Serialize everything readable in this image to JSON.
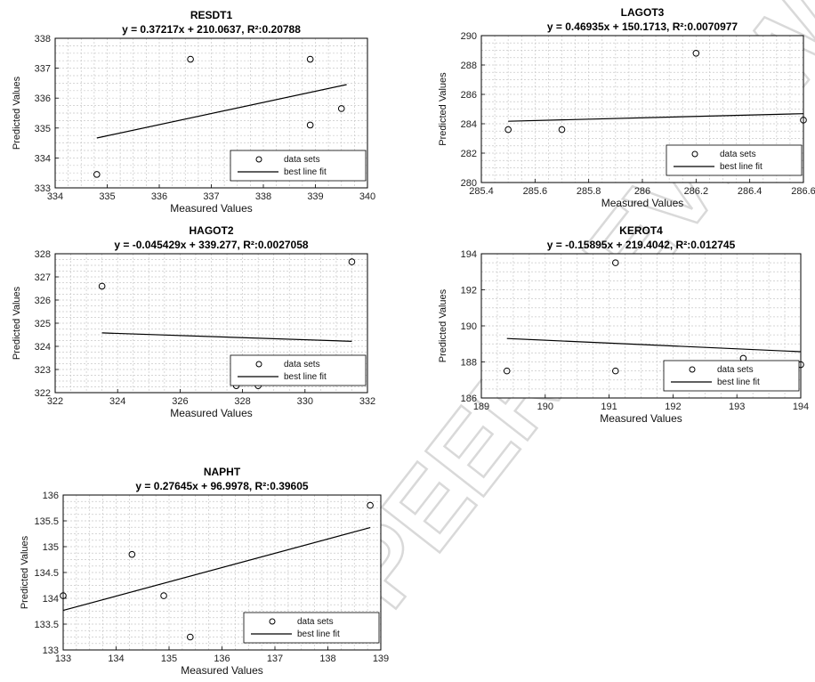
{
  "chart_data": [
    {
      "type": "scatter",
      "title": "RESDT1",
      "equation": "y = 0.37217x + 210.0637, R²:0.20788",
      "xlabel": "Measured Values",
      "ylabel": "Predicted Values",
      "xlim": [
        334,
        340
      ],
      "ylim": [
        333,
        338
      ],
      "xticks": [
        334,
        335,
        336,
        337,
        338,
        339,
        340
      ],
      "yticks": [
        333,
        334,
        335,
        336,
        337,
        338
      ],
      "grid": true,
      "legend_position": "bottom-right",
      "legend": [
        "data sets",
        "best line fit"
      ],
      "fit": {
        "slope": 0.37217,
        "intercept": 210.0637,
        "x_range": [
          334.8,
          339.6
        ]
      },
      "points": [
        {
          "x": 334.8,
          "y": 333.45
        },
        {
          "x": 336.6,
          "y": 337.3
        },
        {
          "x": 338.9,
          "y": 337.3
        },
        {
          "x": 338.9,
          "y": 335.1
        },
        {
          "x": 339.5,
          "y": 335.65
        }
      ]
    },
    {
      "type": "scatter",
      "title": "LAGOT3",
      "equation": "y = 0.46935x + 150.1713, R²:0.0070977",
      "xlabel": "Measured Values",
      "ylabel": "Predicted Values",
      "xlim": [
        285.4,
        286.6
      ],
      "ylim": [
        280,
        290
      ],
      "xticks": [
        285.4,
        285.6,
        285.8,
        286,
        286.2,
        286.4,
        286.6
      ],
      "yticks": [
        280,
        282,
        284,
        286,
        288,
        290
      ],
      "grid": true,
      "legend_position": "bottom-right",
      "legend": [
        "data sets",
        "best line fit"
      ],
      "fit": {
        "slope": 0.46935,
        "intercept": 150.1713,
        "x_range": [
          285.5,
          286.6
        ]
      },
      "points": [
        {
          "x": 285.5,
          "y": 283.6
        },
        {
          "x": 285.7,
          "y": 283.6
        },
        {
          "x": 286.2,
          "y": 288.8
        },
        {
          "x": 286.6,
          "y": 284.25
        }
      ]
    },
    {
      "type": "scatter",
      "title": "HAGOT2",
      "equation": "y = -0.045429x + 339.277, R²:0.0027058",
      "xlabel": "Measured Values",
      "ylabel": "Predicted Values",
      "xlim": [
        322,
        332
      ],
      "ylim": [
        322,
        328
      ],
      "xticks": [
        322,
        324,
        326,
        328,
        330,
        332
      ],
      "yticks": [
        322,
        323,
        324,
        325,
        326,
        327,
        328
      ],
      "grid": true,
      "legend_position": "bottom-right",
      "legend": [
        "data sets",
        "best line fit"
      ],
      "fit": {
        "slope": -0.045429,
        "intercept": 339.277,
        "x_range": [
          323.5,
          331.5
        ]
      },
      "points": [
        {
          "x": 323.5,
          "y": 326.6
        },
        {
          "x": 327.8,
          "y": 322.3
        },
        {
          "x": 328.5,
          "y": 322.3
        },
        {
          "x": 331.5,
          "y": 327.65
        },
        {
          "x": 328.8,
          "y": 323.2
        }
      ]
    },
    {
      "type": "scatter",
      "title": "KEROT4",
      "equation": "y = -0.15895x + 219.4042, R²:0.012745",
      "xlabel": "Measured Values",
      "ylabel": "Predicted Values",
      "xlim": [
        189,
        194
      ],
      "ylim": [
        186,
        194
      ],
      "xticks": [
        189,
        190,
        191,
        192,
        193,
        194
      ],
      "yticks": [
        186,
        188,
        190,
        192,
        194
      ],
      "grid": true,
      "legend_position": "bottom-right",
      "legend": [
        "data sets",
        "best line fit"
      ],
      "fit": {
        "slope": -0.15895,
        "intercept": 219.4042,
        "x_range": [
          189.4,
          194
        ]
      },
      "points": [
        {
          "x": 189.4,
          "y": 187.5
        },
        {
          "x": 191.1,
          "y": 187.5
        },
        {
          "x": 191.1,
          "y": 193.5
        },
        {
          "x": 193.1,
          "y": 188.2
        },
        {
          "x": 194,
          "y": 187.85
        }
      ]
    },
    {
      "type": "scatter",
      "title": "NAPHT",
      "equation": "y = 0.27645x + 96.9978, R²:0.39605",
      "xlabel": "Measured Values",
      "ylabel": "Predicted Values",
      "xlim": [
        133,
        139
      ],
      "ylim": [
        133,
        136
      ],
      "xticks": [
        133,
        134,
        135,
        136,
        137,
        138,
        139
      ],
      "yticks": [
        133,
        133.5,
        134,
        134.5,
        135,
        135.5,
        136
      ],
      "grid": true,
      "legend_position": "bottom-right",
      "legend": [
        "data sets",
        "best line fit"
      ],
      "fit": {
        "slope": 0.27645,
        "intercept": 96.9978,
        "x_range": [
          133,
          138.8
        ]
      },
      "points": [
        {
          "x": 133,
          "y": 134.05
        },
        {
          "x": 134.3,
          "y": 134.85
        },
        {
          "x": 134.9,
          "y": 134.05
        },
        {
          "x": 135.4,
          "y": 133.25
        },
        {
          "x": 138.8,
          "y": 135.8
        }
      ]
    }
  ]
}
